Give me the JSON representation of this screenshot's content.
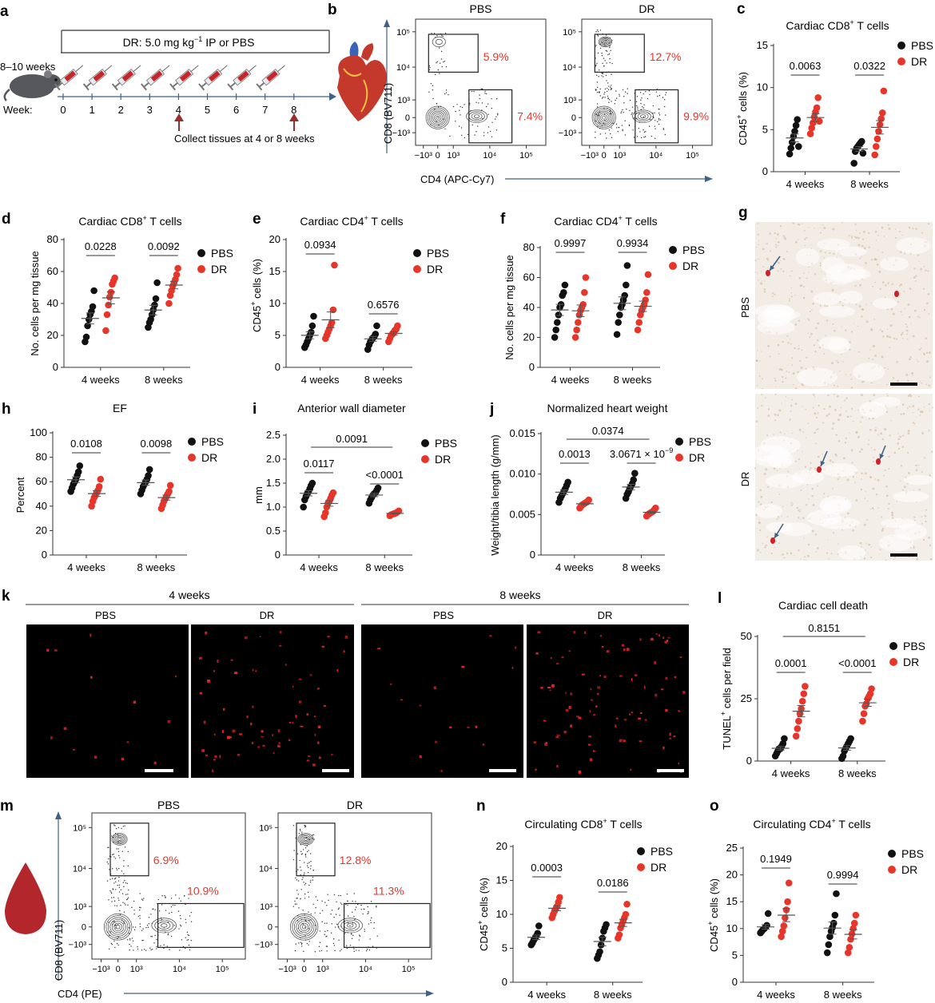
{
  "colors": {
    "pbs": "#111111",
    "dr": "#e8352a",
    "axis": "#333333",
    "arrow": "#3f6288",
    "gate_pct": "#e8352a",
    "micro_red": "#d0202a"
  },
  "legend": {
    "pbs": "PBS",
    "dr": "DR"
  },
  "groups": [
    "4 weeks",
    "8 weeks"
  ],
  "panels": {
    "a": {
      "letter": "a",
      "age": "8–10 weeks",
      "dose_prefix": "DR: 5.0 mg kg",
      "dose_sup": "−1",
      "dose_suffix": " IP or PBS",
      "week_label": "Week:",
      "weeks": [
        "0",
        "1",
        "2",
        "3",
        "4",
        "5",
        "6",
        "7",
        "8"
      ],
      "collect": "Collect tissues at 4 or 8 weeks"
    },
    "b": {
      "letter": "b",
      "titles": [
        "PBS",
        "DR"
      ],
      "ylabel": "CD8 (BV711)",
      "xlabel": "CD4 (APC-Cy7)",
      "ticks": [
        "−10³",
        "0",
        "10³",
        "10⁴",
        "10⁵"
      ],
      "cd8_pct": [
        "5.9%",
        "12.7%"
      ],
      "cd4_pct": [
        "7.4%",
        "9.9%"
      ]
    },
    "c": {
      "letter": "c",
      "title": "Cardiac CD8",
      "title_sup": "+",
      "title_end": " T cells",
      "ylabel_a": "CD45",
      "ylabel_sup": "+",
      "ylabel_b": " cells (%)",
      "ylim": [
        0,
        15
      ],
      "yticks": [
        0,
        5,
        10,
        15
      ],
      "pvals": [
        "0.0063",
        "0.0322"
      ]
    },
    "d": {
      "letter": "d",
      "title": "Cardiac CD8",
      "title_sup": "+",
      "title_end": " T cells",
      "ylabel_a": "No. cells per mg tissue",
      "ylabel_sup": "",
      "ylabel_b": "",
      "ylim": [
        0,
        80
      ],
      "yticks": [
        0,
        20,
        40,
        60,
        80
      ],
      "pvals": [
        "0.0228",
        "0.0092"
      ]
    },
    "e": {
      "letter": "e",
      "title": "Cardiac CD4",
      "title_sup": "+",
      "title_end": " T cells",
      "ylabel_a": "CD45",
      "ylabel_sup": "+",
      "ylabel_b": " cells (%)",
      "ylim": [
        0,
        20
      ],
      "yticks": [
        0,
        5,
        10,
        15,
        20
      ],
      "pvals": [
        "0.0934",
        "0.6576"
      ]
    },
    "f": {
      "letter": "f",
      "title": "Cardiac CD4",
      "title_sup": "+",
      "title_end": " T cells",
      "ylabel_a": "No. cells per mg tissue",
      "ylabel_sup": "",
      "ylabel_b": "",
      "ylim": [
        0,
        80
      ],
      "yticks": [
        0,
        20,
        40,
        60,
        80
      ],
      "pvals": [
        "0.9997",
        "0.9934"
      ]
    },
    "g": {
      "letter": "g",
      "rows": [
        "PBS",
        "DR"
      ]
    },
    "h": {
      "letter": "h",
      "title": "EF",
      "title_sup": "",
      "title_end": "",
      "ylabel_a": "Percent",
      "ylabel_sup": "",
      "ylabel_b": "",
      "ylim": [
        0,
        100
      ],
      "yticks": [
        0,
        20,
        40,
        60,
        80,
        100
      ],
      "pvals": [
        "0.0108",
        "0.0098"
      ]
    },
    "i": {
      "letter": "i",
      "title": "Anterior wall diameter",
      "title_sup": "",
      "title_end": "",
      "ylabel_a": "mm",
      "ylabel_sup": "",
      "ylabel_b": "",
      "ylim": [
        0,
        2.5
      ],
      "yticks": [
        "0",
        "0.5",
        "1.0",
        "1.5",
        "2.0",
        "2.5"
      ],
      "pvals": [
        "0.0117",
        "<0.0001"
      ],
      "pval_cross": "0.0091"
    },
    "j": {
      "letter": "j",
      "title": "Normalized heart weight",
      "title_sup": "",
      "title_end": "",
      "ylabel_a": "Weight/tibia length (g/mm)",
      "ylabel_sup": "",
      "ylabel_b": "",
      "ylim": [
        0,
        0.015
      ],
      "yticks": [
        "0",
        "0.005",
        "0.010",
        "0.015"
      ],
      "pvals": [
        "0.0013",
        "3.0671 × 10"
      ],
      "pval2_sup": "−9",
      "pval_cross": "0.0374"
    },
    "k": {
      "letter": "k",
      "headers": [
        "4 weeks",
        "8 weeks"
      ],
      "conds": [
        "PBS",
        "DR",
        "PBS",
        "DR"
      ]
    },
    "l": {
      "letter": "l",
      "title": "Cardiac cell death",
      "title_sup": "",
      "title_end": "",
      "ylabel_a": "TUNEL",
      "ylabel_sup": "+",
      "ylabel_b": " cells per field",
      "ylim": [
        0,
        50
      ],
      "yticks": [
        0,
        25,
        50
      ],
      "pvals": [
        "0.0001",
        "<0.0001"
      ],
      "pval_cross": "0.8151"
    },
    "m": {
      "letter": "m",
      "titles": [
        "PBS",
        "DR"
      ],
      "ylabel": "CD8 (BV711)",
      "xlabel": "CD4 (PE)",
      "ticks": [
        "−10³",
        "0",
        "10³",
        "10⁴",
        "10⁵"
      ],
      "cd8_pct": [
        "6.9%",
        "12.8%"
      ],
      "cd4_pct": [
        "10.9%",
        "11.3%"
      ]
    },
    "n": {
      "letter": "n",
      "title": "Circulating CD8",
      "title_sup": "+",
      "title_end": " T cells",
      "ylabel_a": "CD45",
      "ylabel_sup": "+",
      "ylabel_b": " cells (%)",
      "ylim": [
        0,
        20
      ],
      "yticks": [
        0,
        5,
        10,
        15,
        20
      ],
      "pvals": [
        "0.0003",
        "0.0186"
      ]
    },
    "o": {
      "letter": "o",
      "title": "Circulating CD4",
      "title_sup": "+",
      "title_end": " T cells",
      "ylabel_a": "CD45",
      "ylabel_sup": "+",
      "ylabel_b": " cells (%)",
      "ylim": [
        0,
        25
      ],
      "yticks": [
        0,
        5,
        10,
        15,
        20,
        25
      ],
      "pvals": [
        "0.1949",
        "0.9994"
      ]
    }
  },
  "chart_data": [
    {
      "panel": "c",
      "type": "scatter",
      "categories": [
        "4 weeks",
        "8 weeks"
      ],
      "series": [
        {
          "name": "PBS",
          "values": [
            [
              2.1,
              2.8,
              3.5,
              4.2,
              4.8,
              5.5,
              6.2,
              3.0
            ],
            [
              1.0,
              2.4,
              2.8,
              3.0,
              3.2,
              3.4,
              3.6,
              2.2
            ]
          ]
        },
        {
          "name": "DR",
          "values": [
            [
              4.5,
              5.2,
              5.8,
              6.5,
              7.1,
              7.6,
              8.8,
              6.0
            ],
            [
              2.0,
              3.0,
              3.9,
              4.8,
              5.6,
              6.3,
              7.0,
              9.6
            ]
          ]
        }
      ],
      "ylim": [
        0,
        15
      ]
    },
    {
      "panel": "d",
      "type": "scatter",
      "categories": [
        "4 weeks",
        "8 weeks"
      ],
      "series": [
        {
          "name": "PBS",
          "values": [
            [
              16,
              19,
              26,
              30,
              33,
              35,
              38,
              48
            ],
            [
              25,
              28,
              30,
              33,
              36,
              39,
              43,
              53
            ]
          ]
        },
        {
          "name": "DR",
          "values": [
            [
              23,
              33,
              39,
              44,
              47,
              52,
              54,
              56
            ],
            [
              40,
              45,
              48,
              51,
              53,
              55,
              58,
              62
            ]
          ]
        }
      ],
      "ylim": [
        0,
        80
      ]
    },
    {
      "panel": "e",
      "type": "scatter",
      "categories": [
        "4 weeks",
        "8 weeks"
      ],
      "series": [
        {
          "name": "PBS",
          "values": [
            [
              3.1,
              3.5,
              4.0,
              4.5,
              5.0,
              5.5,
              6.5,
              8.0
            ],
            [
              2.8,
              3.5,
              4.0,
              4.3,
              4.6,
              4.8,
              5.2,
              6.5
            ]
          ]
        },
        {
          "name": "DR",
          "values": [
            [
              4.5,
              5.0,
              5.5,
              6.0,
              6.5,
              7.0,
              9.0,
              16.0
            ],
            [
              4.0,
              4.5,
              5.0,
              5.2,
              5.5,
              5.8,
              6.0,
              6.5
            ]
          ]
        }
      ],
      "ylim": [
        0,
        20
      ]
    },
    {
      "panel": "f",
      "type": "scatter",
      "categories": [
        "4 weeks",
        "8 weeks"
      ],
      "series": [
        {
          "name": "PBS",
          "values": [
            [
              20,
              25,
              30,
              35,
              40,
              42,
              48,
              50,
              55
            ],
            [
              22,
              30,
              35,
              40,
              42,
              45,
              48,
              55,
              68
            ]
          ]
        },
        {
          "name": "DR",
          "values": [
            [
              20,
              25,
              30,
              35,
              38,
              40,
              42,
              50,
              60
            ],
            [
              25,
              30,
              35,
              38,
              40,
              42,
              45,
              50,
              62
            ]
          ]
        }
      ],
      "ylim": [
        0,
        80
      ]
    },
    {
      "panel": "h",
      "type": "scatter",
      "categories": [
        "4 weeks",
        "8 weeks"
      ],
      "series": [
        {
          "name": "PBS",
          "values": [
            [
              52,
              55,
              58,
              60,
              62,
              65,
              68,
              73
            ],
            [
              50,
              53,
              56,
              58,
              60,
              62,
              65,
              70
            ]
          ]
        },
        {
          "name": "DR",
          "values": [
            [
              40,
              44,
              47,
              49,
              51,
              53,
              56,
              62
            ],
            [
              38,
              41,
              44,
              46,
              48,
              50,
              52,
              57
            ]
          ]
        }
      ],
      "ylim": [
        0,
        100
      ]
    },
    {
      "panel": "i",
      "type": "scatter",
      "categories": [
        "4 weeks",
        "8 weeks"
      ],
      "series": [
        {
          "name": "PBS",
          "values": [
            [
              1.0,
              1.15,
              1.22,
              1.28,
              1.32,
              1.38,
              1.45,
              1.5
            ],
            [
              1.08,
              1.15,
              1.2,
              1.25,
              1.28,
              1.3,
              1.35,
              1.4
            ]
          ]
        },
        {
          "name": "DR",
          "values": [
            [
              0.8,
              0.88,
              1.0,
              1.08,
              1.12,
              1.18,
              1.25,
              1.3
            ],
            [
              0.82,
              0.84,
              0.85,
              0.86,
              0.87,
              0.88,
              0.9,
              0.92
            ]
          ]
        }
      ],
      "ylim": [
        0,
        2.5
      ]
    },
    {
      "panel": "j",
      "type": "scatter",
      "categories": [
        "4 weeks",
        "8 weeks"
      ],
      "series": [
        {
          "name": "PBS",
          "values": [
            [
              0.0065,
              0.007,
              0.0073,
              0.0076,
              0.0079,
              0.0082,
              0.0086,
              0.009
            ],
            [
              0.007,
              0.0075,
              0.0078,
              0.0082,
              0.0085,
              0.0088,
              0.0093,
              0.0101
            ]
          ]
        },
        {
          "name": "DR",
          "values": [
            [
              0.0058,
              0.006,
              0.0062,
              0.0063,
              0.0064,
              0.0065,
              0.0066,
              0.0068
            ],
            [
              0.0048,
              0.005,
              0.0051,
              0.0052,
              0.0053,
              0.0054,
              0.0056,
              0.0058
            ]
          ]
        }
      ],
      "ylim": [
        0,
        0.015
      ]
    },
    {
      "panel": "l",
      "type": "scatter",
      "categories": [
        "4 weeks",
        "8 weeks"
      ],
      "series": [
        {
          "name": "PBS",
          "values": [
            [
              2,
              3,
              4,
              5,
              5,
              6,
              7,
              9
            ],
            [
              1,
              2,
              4,
              5,
              6,
              7,
              8,
              9
            ]
          ]
        },
        {
          "name": "DR",
          "values": [
            [
              10,
              13,
              16,
              19,
              21,
              24,
              27,
              30
            ],
            [
              16,
              19,
              22,
              23,
              25,
              26,
              27,
              29
            ]
          ]
        }
      ],
      "ylim": [
        0,
        50
      ]
    },
    {
      "panel": "n",
      "type": "scatter",
      "categories": [
        "4 weeks",
        "8 weeks"
      ],
      "series": [
        {
          "name": "PBS",
          "values": [
            [
              5.5,
              5.8,
              6.2,
              6.5,
              6.8,
              7.2,
              8.3
            ],
            [
              3.5,
              4.0,
              4.5,
              5.5,
              6.5,
              7.5,
              8.0,
              8.5
            ]
          ]
        },
        {
          "name": "DR",
          "values": [
            [
              9.5,
              10.0,
              10.5,
              10.8,
              11.2,
              11.8,
              12.5
            ],
            [
              6.5,
              7.0,
              8.0,
              8.5,
              9.0,
              9.5,
              10.0,
              11.5
            ]
          ]
        }
      ],
      "ylim": [
        0,
        20
      ]
    },
    {
      "panel": "o",
      "type": "scatter",
      "categories": [
        "4 weeks",
        "8 weeks"
      ],
      "series": [
        {
          "name": "PBS",
          "values": [
            [
              9.2,
              9.5,
              9.8,
              10.0,
              10.3,
              10.6,
              12.8
            ],
            [
              5.5,
              7.0,
              8.5,
              9.5,
              10.2,
              11.0,
              12.5,
              16.5
            ]
          ]
        },
        {
          "name": "DR",
          "values": [
            [
              8.5,
              9.5,
              10.5,
              12.0,
              13.5,
              15.0,
              18.5
            ],
            [
              5.5,
              6.5,
              8.0,
              9.0,
              10.0,
              11.0,
              12.5
            ]
          ]
        }
      ],
      "ylim": [
        0,
        25
      ]
    }
  ]
}
